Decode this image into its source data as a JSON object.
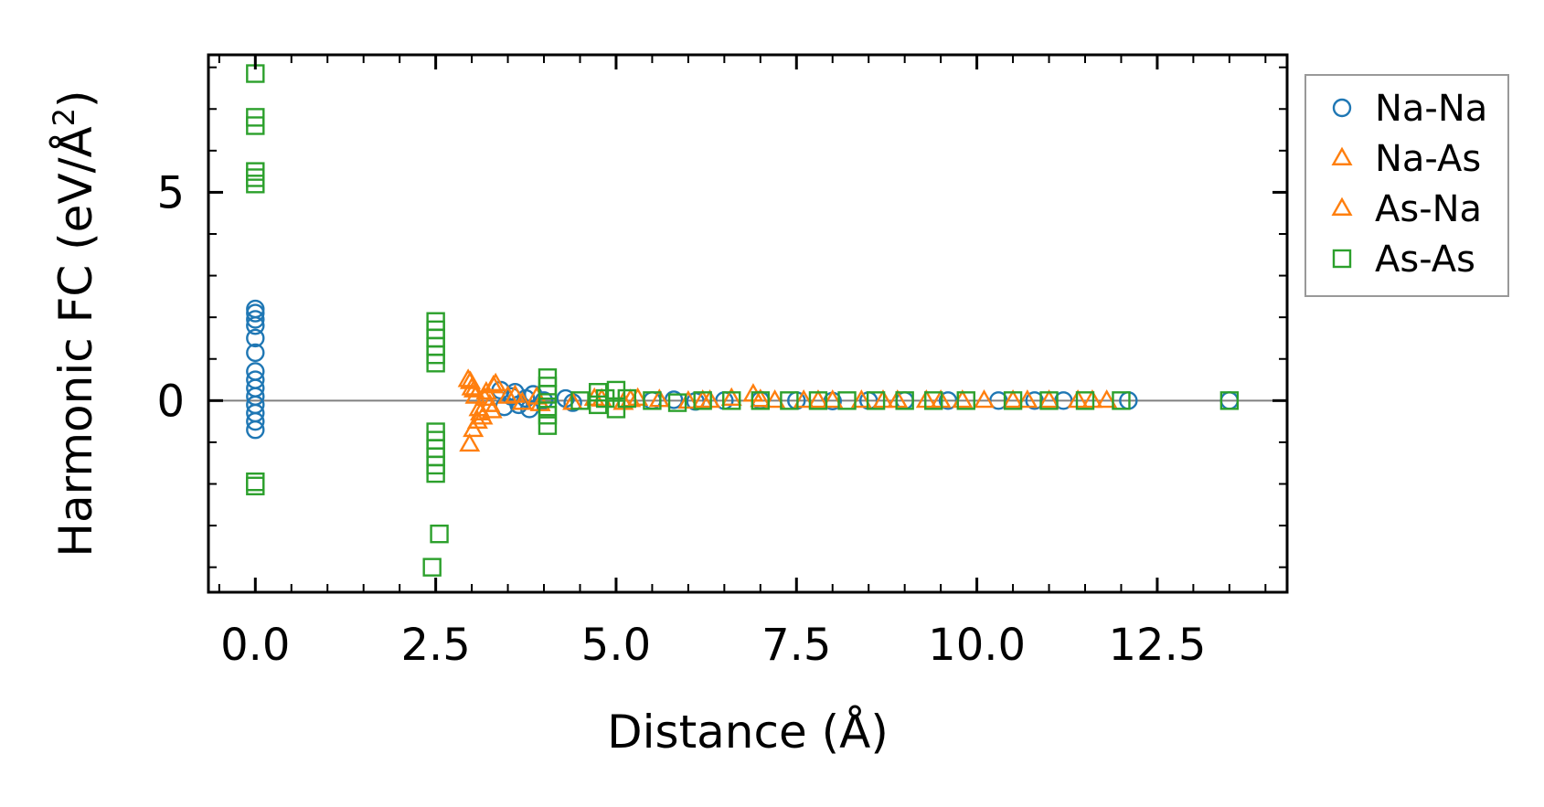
{
  "chart_data": {
    "type": "scatter",
    "xlabel": "Distance (Å)",
    "ylabel_main": "Harmonic FC (eV/Å",
    "ylabel_sup": "2",
    "ylabel_end": ")",
    "xlim": [
      -0.65,
      14.3
    ],
    "ylim": [
      -4.6,
      8.3
    ],
    "xticks": [
      {
        "v": 0.0,
        "label": "0.0"
      },
      {
        "v": 2.5,
        "label": "2.5"
      },
      {
        "v": 5.0,
        "label": "5.0"
      },
      {
        "v": 7.5,
        "label": "7.5"
      },
      {
        "v": 10.0,
        "label": "10.0"
      },
      {
        "v": 12.5,
        "label": "12.5"
      }
    ],
    "yticks": [
      {
        "v": 0,
        "label": "0"
      },
      {
        "v": 5,
        "label": "5"
      }
    ],
    "reference_line_y": 0,
    "legend_position": "outside-right",
    "series": [
      {
        "name": "Na-Na",
        "marker": "circle",
        "color": "#1f77b4",
        "points": [
          [
            0,
            2.2
          ],
          [
            0,
            2.1
          ],
          [
            0,
            1.95
          ],
          [
            0,
            1.8
          ],
          [
            0,
            1.5
          ],
          [
            0,
            1.15
          ],
          [
            0,
            0.7
          ],
          [
            0,
            0.5
          ],
          [
            0,
            0.3
          ],
          [
            0,
            0.1
          ],
          [
            0,
            -0.1
          ],
          [
            0,
            -0.3
          ],
          [
            0,
            -0.5
          ],
          [
            0,
            -0.7
          ],
          [
            3.4,
            0.25
          ],
          [
            3.45,
            -0.15
          ],
          [
            3.55,
            0.1
          ],
          [
            3.6,
            0.2
          ],
          [
            3.65,
            -0.1
          ],
          [
            3.75,
            0.05
          ],
          [
            3.8,
            -0.2
          ],
          [
            3.85,
            0.15
          ],
          [
            4.0,
            0.0
          ],
          [
            4.3,
            0.05
          ],
          [
            4.4,
            -0.05
          ],
          [
            5.5,
            0.0
          ],
          [
            5.8,
            0.02
          ],
          [
            6.1,
            -0.02
          ],
          [
            6.5,
            0.0
          ],
          [
            7.0,
            0.01
          ],
          [
            7.5,
            0.0
          ],
          [
            8.0,
            -0.01
          ],
          [
            8.5,
            0.0
          ],
          [
            9.0,
            0.0
          ],
          [
            9.6,
            0.0
          ],
          [
            10.3,
            0.0
          ],
          [
            10.8,
            0.0
          ],
          [
            11.2,
            0.0
          ],
          [
            12.1,
            0.0
          ],
          [
            13.5,
            0.0
          ]
        ]
      },
      {
        "name": "Na-As",
        "marker": "triangle",
        "color": "#ff7f0e",
        "points": [
          [
            2.95,
            0.5
          ],
          [
            3.0,
            0.3
          ],
          [
            3.05,
            0.1
          ],
          [
            3.1,
            -0.2
          ],
          [
            3.15,
            -0.4
          ],
          [
            3.2,
            0.2
          ],
          [
            3.25,
            -0.1
          ],
          [
            3.3,
            0.35
          ],
          [
            2.97,
            -1.05
          ],
          [
            3.02,
            -0.7
          ],
          [
            3.08,
            -0.5
          ],
          [
            3.5,
            0.1
          ],
          [
            3.7,
            -0.05
          ],
          [
            3.9,
            0.08
          ],
          [
            4.4,
            -0.05
          ],
          [
            4.7,
            0.05
          ],
          [
            5.1,
            -0.05
          ],
          [
            5.3,
            0.05
          ],
          [
            5.6,
            0.02
          ],
          [
            6.0,
            -0.02
          ],
          [
            6.3,
            0.0
          ],
          [
            6.6,
            0.05
          ],
          [
            6.9,
            0.15
          ],
          [
            7.2,
            0.0
          ],
          [
            7.6,
            0.0
          ],
          [
            8.0,
            0.0
          ],
          [
            8.4,
            0.0
          ],
          [
            8.9,
            0.0
          ],
          [
            9.3,
            0.0
          ],
          [
            9.8,
            0.0
          ],
          [
            10.1,
            0.0
          ],
          [
            10.5,
            0.0
          ],
          [
            11.0,
            0.0
          ],
          [
            11.4,
            0.0
          ],
          [
            11.8,
            0.0
          ]
        ]
      },
      {
        "name": "As-Na",
        "marker": "triangle",
        "color": "#ff7f0e",
        "points": [
          [
            2.98,
            0.45
          ],
          [
            3.03,
            0.25
          ],
          [
            3.12,
            -0.3
          ],
          [
            3.18,
            0.05
          ],
          [
            3.28,
            -0.25
          ],
          [
            3.33,
            0.4
          ],
          [
            3.6,
            0.12
          ],
          [
            3.95,
            -0.08
          ],
          [
            4.8,
            0.03
          ],
          [
            5.2,
            0.02
          ],
          [
            6.2,
            0.0
          ],
          [
            7.0,
            0.02
          ],
          [
            7.8,
            0.0
          ],
          [
            8.7,
            0.0
          ],
          [
            9.5,
            0.0
          ],
          [
            10.7,
            0.0
          ],
          [
            11.6,
            0.0
          ]
        ]
      },
      {
        "name": "As-As",
        "marker": "square",
        "color": "#2ca02c",
        "points": [
          [
            0,
            7.85
          ],
          [
            0,
            6.8
          ],
          [
            0,
            6.6
          ],
          [
            0,
            5.5
          ],
          [
            0,
            5.35
          ],
          [
            0,
            5.2
          ],
          [
            0,
            -1.95
          ],
          [
            0,
            -2.05
          ],
          [
            2.5,
            1.9
          ],
          [
            2.5,
            1.7
          ],
          [
            2.5,
            1.5
          ],
          [
            2.5,
            1.3
          ],
          [
            2.5,
            1.1
          ],
          [
            2.5,
            0.9
          ],
          [
            2.5,
            -0.75
          ],
          [
            2.5,
            -0.95
          ],
          [
            2.5,
            -1.15
          ],
          [
            2.5,
            -1.35
          ],
          [
            2.5,
            -1.55
          ],
          [
            2.5,
            -1.75
          ],
          [
            2.55,
            -3.2
          ],
          [
            2.45,
            -4.0
          ],
          [
            4.05,
            0.55
          ],
          [
            4.05,
            0.35
          ],
          [
            4.05,
            0.15
          ],
          [
            4.05,
            -0.15
          ],
          [
            4.05,
            -0.35
          ],
          [
            4.05,
            -0.6
          ],
          [
            4.5,
            0.0
          ],
          [
            4.75,
            0.2
          ],
          [
            4.75,
            -0.1
          ],
          [
            4.85,
            0.05
          ],
          [
            5.0,
            0.25
          ],
          [
            5.0,
            -0.2
          ],
          [
            5.15,
            0.05
          ],
          [
            5.5,
            0.0
          ],
          [
            5.85,
            -0.05
          ],
          [
            6.2,
            0.0
          ],
          [
            6.6,
            0.0
          ],
          [
            7.0,
            0.0
          ],
          [
            7.4,
            0.0
          ],
          [
            7.8,
            0.0
          ],
          [
            8.2,
            0.0
          ],
          [
            8.6,
            0.0
          ],
          [
            9.0,
            0.0
          ],
          [
            9.4,
            0.0
          ],
          [
            9.85,
            0.0
          ],
          [
            10.5,
            0.0
          ],
          [
            11.0,
            0.0
          ],
          [
            11.5,
            0.0
          ],
          [
            12.0,
            0.0
          ],
          [
            13.5,
            0.0
          ]
        ]
      }
    ]
  }
}
